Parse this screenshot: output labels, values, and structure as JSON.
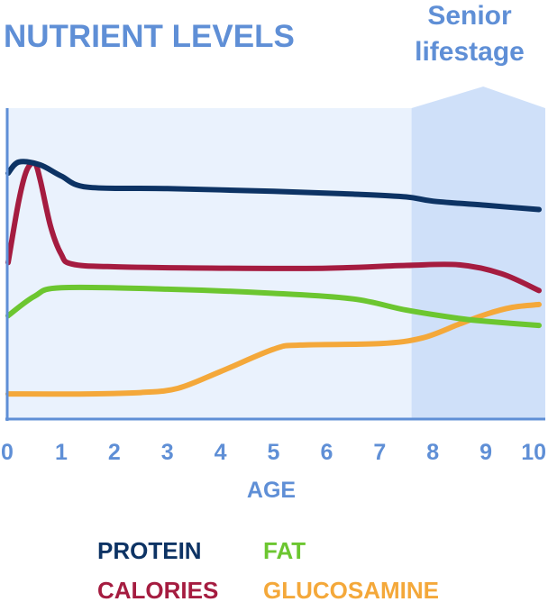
{
  "chart_data": {
    "type": "line",
    "title": "NUTRIENT LEVELS",
    "xlabel": "AGE",
    "ylabel": "",
    "xlim": [
      0,
      10
    ],
    "x_ticks": [
      "0",
      "1",
      "2",
      "3",
      "4",
      "5",
      "6",
      "7",
      "8",
      "9",
      "10"
    ],
    "grid": false,
    "legend_position": "bottom",
    "highlight_region": {
      "label_lines": [
        "Senior",
        "lifestage"
      ],
      "x_from": 7.6,
      "x_to": 10
    },
    "series": [
      {
        "name": "PROTEIN",
        "color": "#0d3364",
        "points": [
          [
            0,
            88
          ],
          [
            0.2,
            92
          ],
          [
            0.6,
            91
          ],
          [
            1,
            87
          ],
          [
            1.5,
            83
          ],
          [
            3,
            82.5
          ],
          [
            5,
            81.5
          ],
          [
            6.5,
            80.5
          ],
          [
            7.5,
            79.5
          ],
          [
            8,
            78
          ],
          [
            9,
            76.5
          ],
          [
            10,
            75
          ]
        ]
      },
      {
        "name": "CALORIES",
        "color": "#a51c40",
        "points": [
          [
            0,
            56
          ],
          [
            0.2,
            78
          ],
          [
            0.35,
            89
          ],
          [
            0.5,
            91.5
          ],
          [
            0.6,
            86
          ],
          [
            0.8,
            69
          ],
          [
            1,
            59
          ],
          [
            1.2,
            55.5
          ],
          [
            2,
            54.5
          ],
          [
            4,
            54
          ],
          [
            6,
            54
          ],
          [
            7.5,
            55
          ],
          [
            8.5,
            55.2
          ],
          [
            9.3,
            52
          ],
          [
            10,
            46
          ]
        ]
      },
      {
        "name": "FAT",
        "color": "#6cc630",
        "points": [
          [
            0,
            37
          ],
          [
            0.5,
            44
          ],
          [
            1,
            47
          ],
          [
            3,
            46.5
          ],
          [
            5,
            45
          ],
          [
            6.5,
            43
          ],
          [
            7.5,
            39
          ],
          [
            8.5,
            36
          ],
          [
            9,
            35
          ],
          [
            10,
            33.5
          ]
        ]
      },
      {
        "name": "GLUCOSAMINE",
        "color": "#f4a83a",
        "points": [
          [
            0,
            9
          ],
          [
            1.5,
            9
          ],
          [
            2.5,
            9.5
          ],
          [
            3.2,
            11
          ],
          [
            4,
            17
          ],
          [
            5,
            25
          ],
          [
            5.5,
            26.5
          ],
          [
            7,
            27
          ],
          [
            7.8,
            29
          ],
          [
            8.5,
            34
          ],
          [
            9,
            37.5
          ],
          [
            9.5,
            40
          ],
          [
            10,
            41
          ]
        ]
      }
    ]
  }
}
